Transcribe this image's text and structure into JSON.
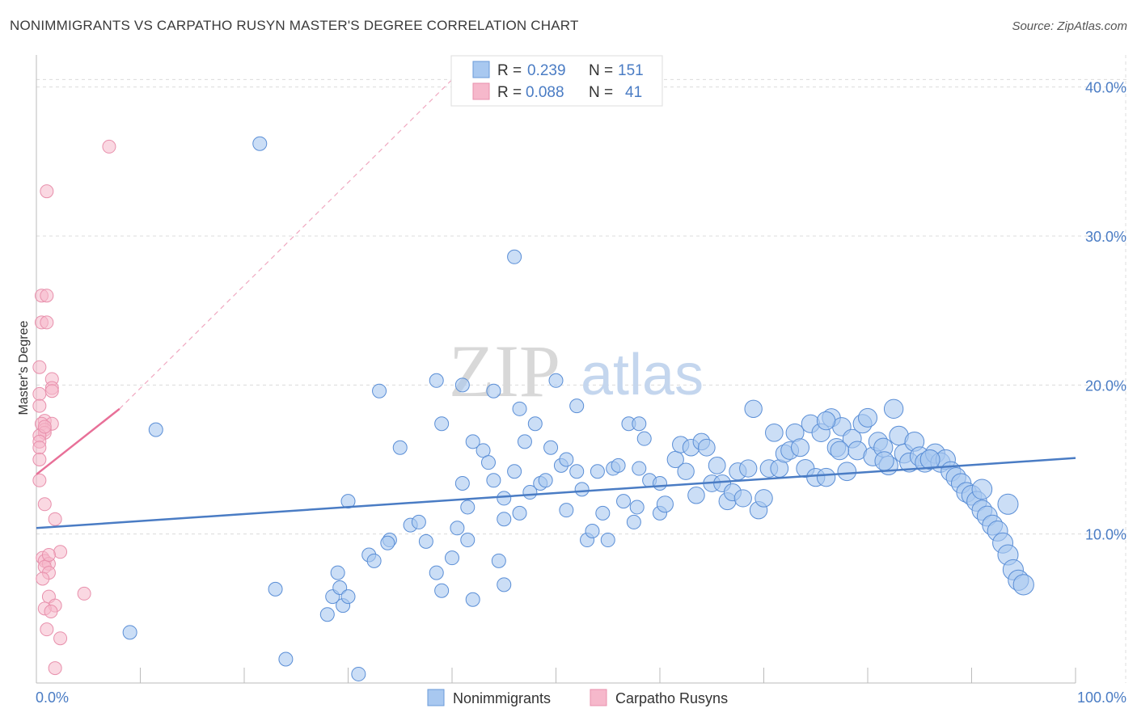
{
  "title": "NONIMMIGRANTS VS CARPATHO RUSYN MASTER'S DEGREE CORRELATION CHART",
  "source": "Source: ZipAtlas.com",
  "watermark": {
    "zip": "ZIP",
    "atlas": "atlas"
  },
  "legend_top": [
    {
      "r_label": "R =",
      "r": "0.239",
      "n_label": "N =",
      "n": "151",
      "color": "#a8c8f0"
    },
    {
      "r_label": "R =",
      "r": "0.088",
      "n_label": "N =",
      "n": "41",
      "color": "#f6b8cb"
    }
  ],
  "chart_data": {
    "type": "scatter",
    "ylabel": "Master's Degree",
    "x_tick_labels": [
      "0.0%",
      "100.0%"
    ],
    "y_tick_labels": [
      "10.0%",
      "20.0%",
      "30.0%",
      "40.0%"
    ],
    "y_ticks": [
      10,
      20,
      30,
      40
    ],
    "xlim": [
      0,
      100
    ],
    "ylim": [
      0,
      41.5
    ],
    "grid": true,
    "legend": "top-center",
    "series": [
      {
        "name": "Nonimmigrants",
        "color": "#4a7cc4",
        "fill": "#a8c8f0",
        "trend": [
          [
            0,
            10.4
          ],
          [
            100,
            15.1
          ]
        ],
        "points": [
          [
            21.5,
            36.2
          ],
          [
            46,
            28.6
          ],
          [
            11.5,
            17.0
          ],
          [
            9,
            3.4
          ],
          [
            23,
            6.3
          ],
          [
            24,
            1.6
          ],
          [
            30,
            12.2
          ],
          [
            28,
            4.6
          ],
          [
            28.5,
            5.8
          ],
          [
            29,
            7.4
          ],
          [
            29.2,
            6.4
          ],
          [
            29.5,
            5.2
          ],
          [
            30,
            5.8
          ],
          [
            32,
            8.6
          ],
          [
            32.5,
            8.2
          ],
          [
            33,
            19.6
          ],
          [
            34,
            9.6
          ],
          [
            31,
            0.6
          ],
          [
            35,
            15.8
          ],
          [
            33.8,
            9.4
          ],
          [
            36,
            10.6
          ],
          [
            37.5,
            9.5
          ],
          [
            36.8,
            10.8
          ],
          [
            38.5,
            7.4
          ],
          [
            38.5,
            20.3
          ],
          [
            39,
            6.2
          ],
          [
            40,
            8.4
          ],
          [
            40.5,
            10.4
          ],
          [
            39,
            17.4
          ],
          [
            41,
            20.0
          ],
          [
            41.5,
            9.6
          ],
          [
            42,
            16.2
          ],
          [
            42,
            5.6
          ],
          [
            41,
            13.4
          ],
          [
            41.5,
            11.8
          ],
          [
            43,
            15.6
          ],
          [
            43.5,
            14.8
          ],
          [
            44,
            13.6
          ],
          [
            45,
            12.4
          ],
          [
            44,
            19.6
          ],
          [
            44.5,
            8.2
          ],
          [
            45,
            6.6
          ],
          [
            45,
            11.0
          ],
          [
            46,
            14.2
          ],
          [
            46.5,
            11.4
          ],
          [
            46.5,
            18.4
          ],
          [
            47,
            16.2
          ],
          [
            47.5,
            12.8
          ],
          [
            48,
            17.4
          ],
          [
            48.5,
            13.4
          ],
          [
            49,
            13.6
          ],
          [
            49.5,
            15.8
          ],
          [
            50,
            20.3
          ],
          [
            50.5,
            14.6
          ],
          [
            51,
            15.0
          ],
          [
            51,
            11.6
          ],
          [
            52,
            14.2
          ],
          [
            52,
            18.6
          ],
          [
            52.5,
            13.0
          ],
          [
            53,
            9.6
          ],
          [
            53.5,
            10.2
          ],
          [
            54,
            14.2
          ],
          [
            54.5,
            11.4
          ],
          [
            55,
            9.6
          ],
          [
            55.5,
            14.4
          ],
          [
            56,
            14.6
          ],
          [
            56.5,
            12.2
          ],
          [
            57,
            17.4
          ],
          [
            57.5,
            10.8
          ],
          [
            57.8,
            11.8
          ],
          [
            58,
            14.4
          ],
          [
            58,
            17.4
          ],
          [
            58.5,
            16.4
          ],
          [
            59,
            13.6
          ],
          [
            60,
            11.4
          ],
          [
            60,
            13.4
          ],
          [
            60.5,
            12.0
          ],
          [
            61.5,
            15.0
          ],
          [
            62,
            16.0
          ],
          [
            62.5,
            14.2
          ],
          [
            63,
            15.8
          ],
          [
            63.5,
            12.6
          ],
          [
            64,
            16.2
          ],
          [
            64.5,
            15.8
          ],
          [
            65,
            13.4
          ],
          [
            65.5,
            14.6
          ],
          [
            66,
            13.4
          ],
          [
            66.5,
            12.2
          ],
          [
            67,
            12.8
          ],
          [
            67.5,
            14.2
          ],
          [
            68,
            12.4
          ],
          [
            68.5,
            14.4
          ],
          [
            69,
            18.4
          ],
          [
            69.5,
            11.6
          ],
          [
            70,
            12.4
          ],
          [
            70.5,
            14.4
          ],
          [
            71,
            16.8
          ],
          [
            71.5,
            14.4
          ],
          [
            72,
            15.4
          ],
          [
            72.5,
            15.6
          ],
          [
            73,
            16.8
          ],
          [
            73.5,
            15.8
          ],
          [
            74,
            14.4
          ],
          [
            74.5,
            17.4
          ],
          [
            75,
            13.8
          ],
          [
            75.5,
            16.8
          ],
          [
            76,
            13.8
          ],
          [
            76.5,
            17.8
          ],
          [
            77,
            15.8
          ],
          [
            77.5,
            17.2
          ],
          [
            78,
            14.2
          ],
          [
            78.5,
            16.4
          ],
          [
            79,
            15.6
          ],
          [
            79.5,
            17.4
          ],
          [
            80,
            17.8
          ],
          [
            80.5,
            15.2
          ],
          [
            81,
            16.2
          ],
          [
            81.5,
            15.8
          ],
          [
            82,
            14.6
          ],
          [
            82.5,
            18.4
          ],
          [
            83,
            16.6
          ],
          [
            83.5,
            15.4
          ],
          [
            84,
            14.8
          ],
          [
            84.5,
            16.2
          ],
          [
            85,
            15.2
          ],
          [
            85.5,
            14.8
          ],
          [
            86,
            15.0
          ],
          [
            86.5,
            15.4
          ],
          [
            87,
            14.8
          ],
          [
            87.5,
            15.0
          ],
          [
            88,
            14.2
          ],
          [
            88.5,
            13.8
          ],
          [
            89,
            13.4
          ],
          [
            89.5,
            12.8
          ],
          [
            90,
            12.6
          ],
          [
            90.5,
            12.2
          ],
          [
            91,
            11.6
          ],
          [
            91.5,
            11.2
          ],
          [
            92,
            10.6
          ],
          [
            92.5,
            10.2
          ],
          [
            93,
            9.4
          ],
          [
            93.5,
            8.6
          ],
          [
            94,
            7.6
          ],
          [
            94.5,
            6.9
          ],
          [
            95,
            6.6
          ],
          [
            93.5,
            12.0
          ],
          [
            91,
            13.0
          ],
          [
            86,
            15.0
          ],
          [
            81.6,
            14.9
          ],
          [
            77.3,
            15.6
          ],
          [
            76.0,
            17.6
          ]
        ]
      },
      {
        "name": "Carpatho Rusyns",
        "color": "#e87098",
        "fill": "#f6b8cb",
        "trend": [
          [
            0,
            14.0
          ],
          [
            8,
            18.4
          ]
        ],
        "trend_ext": [
          [
            8,
            18.4
          ],
          [
            40,
            40.5
          ]
        ],
        "points": [
          [
            7,
            36.0
          ],
          [
            1,
            33.0
          ],
          [
            0.5,
            26.0
          ],
          [
            1,
            26.0
          ],
          [
            0.5,
            24.2
          ],
          [
            1,
            24.2
          ],
          [
            0.3,
            21.2
          ],
          [
            1.5,
            20.4
          ],
          [
            1.5,
            19.8
          ],
          [
            1.5,
            19.6
          ],
          [
            0.3,
            19.4
          ],
          [
            0.3,
            18.6
          ],
          [
            0.8,
            17.6
          ],
          [
            1.5,
            17.4
          ],
          [
            0.5,
            17.4
          ],
          [
            0.8,
            17.0
          ],
          [
            0.8,
            16.8
          ],
          [
            0.3,
            16.6
          ],
          [
            0.3,
            16.2
          ],
          [
            0.3,
            15.8
          ],
          [
            0.3,
            15.0
          ],
          [
            0.3,
            13.6
          ],
          [
            0.8,
            12.0
          ],
          [
            1.8,
            11.0
          ],
          [
            2.3,
            8.8
          ],
          [
            0.6,
            8.4
          ],
          [
            0.8,
            8.2
          ],
          [
            1.2,
            8.0
          ],
          [
            0.8,
            7.8
          ],
          [
            1.2,
            7.4
          ],
          [
            0.6,
            7.0
          ],
          [
            4.6,
            6.0
          ],
          [
            1.2,
            5.8
          ],
          [
            1.8,
            5.2
          ],
          [
            0.8,
            5.0
          ],
          [
            1.4,
            4.8
          ],
          [
            1.0,
            3.6
          ],
          [
            2.3,
            3.0
          ],
          [
            1.8,
            1.0
          ],
          [
            0.8,
            17.2
          ],
          [
            1.2,
            8.6
          ]
        ]
      }
    ]
  },
  "legend_bottom": [
    {
      "label": "Nonimmigrants",
      "color": "#a8c8f0"
    },
    {
      "label": "Carpatho Rusyns",
      "color": "#f6b8cb"
    }
  ]
}
